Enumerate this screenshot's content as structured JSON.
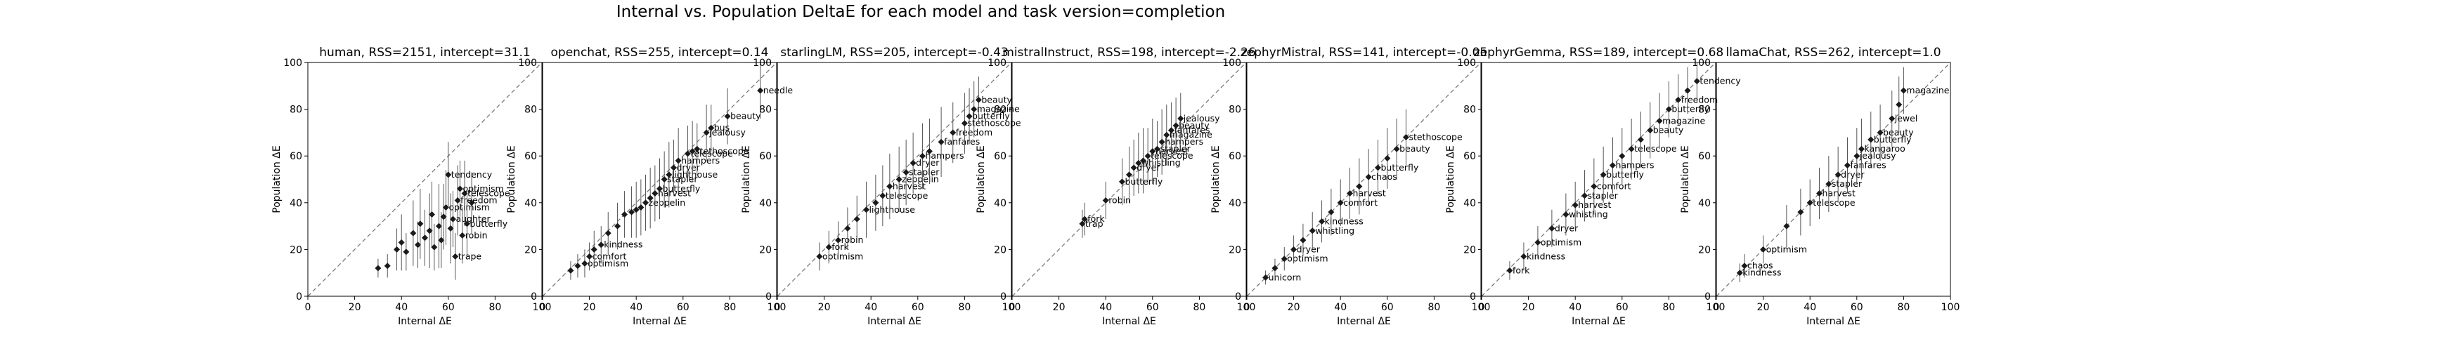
{
  "title": "Internal vs. Population DeltaE for each model and task version=completion",
  "colors": {
    "marker": "#1a1a1a",
    "errorbar": "#555555",
    "diagonal": "#7a7a7a"
  },
  "chart_data": [
    {
      "type": "scatter",
      "title": "human, RSS=2151, intercept=31.1",
      "xlabel": "Internal ΔE",
      "ylabel": "Population ΔE",
      "xlim": [
        0,
        100
      ],
      "ylim": [
        0,
        100
      ],
      "xticks": [
        "0",
        "20",
        "40",
        "60",
        "80",
        "100"
      ],
      "yticks": [
        "0",
        "20",
        "40",
        "60",
        "80",
        "100"
      ],
      "reference_line": "y = x, dashed",
      "points": [
        {
          "x": 30,
          "y": 12,
          "err": 4,
          "label": ""
        },
        {
          "x": 34,
          "y": 13,
          "err": 5,
          "label": ""
        },
        {
          "x": 38,
          "y": 20,
          "err": 9,
          "label": ""
        },
        {
          "x": 40,
          "y": 23,
          "err": 12,
          "label": ""
        },
        {
          "x": 42,
          "y": 19,
          "err": 8,
          "label": ""
        },
        {
          "x": 45,
          "y": 27,
          "err": 14,
          "label": ""
        },
        {
          "x": 47,
          "y": 22,
          "err": 10,
          "label": ""
        },
        {
          "x": 48,
          "y": 31,
          "err": 15,
          "label": ""
        },
        {
          "x": 50,
          "y": 25,
          "err": 12,
          "label": ""
        },
        {
          "x": 52,
          "y": 28,
          "err": 16,
          "label": ""
        },
        {
          "x": 53,
          "y": 35,
          "err": 14,
          "label": ""
        },
        {
          "x": 54,
          "y": 21,
          "err": 10,
          "label": ""
        },
        {
          "x": 56,
          "y": 30,
          "err": 18,
          "label": ""
        },
        {
          "x": 57,
          "y": 24,
          "err": 12,
          "label": ""
        },
        {
          "x": 58,
          "y": 34,
          "err": 14,
          "label": ""
        },
        {
          "x": 59,
          "y": 38,
          "err": 16,
          "label": "optimism"
        },
        {
          "x": 60,
          "y": 52,
          "err": 14,
          "label": "tendency"
        },
        {
          "x": 61,
          "y": 29,
          "err": 15,
          "label": ""
        },
        {
          "x": 62,
          "y": 33,
          "err": 12,
          "label": "aughter"
        },
        {
          "x": 63,
          "y": 17,
          "err": 10,
          "label": "trape"
        },
        {
          "x": 64,
          "y": 41,
          "err": 15,
          "label": "freedom"
        },
        {
          "x": 65,
          "y": 46,
          "err": 12,
          "label": "optimism"
        },
        {
          "x": 66,
          "y": 26,
          "err": 12,
          "label": "robin"
        },
        {
          "x": 67,
          "y": 44,
          "err": 14,
          "label": "telescope"
        },
        {
          "x": 68,
          "y": 31,
          "err": 14,
          "label": "butterfly"
        },
        {
          "x": 70,
          "y": 40,
          "err": 13,
          "label": ""
        }
      ]
    },
    {
      "type": "scatter",
      "title": "openchat, RSS=255, intercept=0.14",
      "xlabel": "Internal ΔE",
      "ylabel": "Population ΔE",
      "xlim": [
        0,
        100
      ],
      "ylim": [
        0,
        100
      ],
      "xticks": [
        "0",
        "20",
        "40",
        "60",
        "80",
        "100"
      ],
      "yticks": [
        "0",
        "20",
        "40",
        "60",
        "80",
        "100"
      ],
      "reference_line": "y = x, dashed",
      "points": [
        {
          "x": 12,
          "y": 11,
          "err": 4,
          "label": ""
        },
        {
          "x": 15,
          "y": 13,
          "err": 5,
          "label": ""
        },
        {
          "x": 18,
          "y": 14,
          "err": 6,
          "label": "optimism"
        },
        {
          "x": 20,
          "y": 17,
          "err": 6,
          "label": "comfort"
        },
        {
          "x": 22,
          "y": 20,
          "err": 8,
          "label": ""
        },
        {
          "x": 25,
          "y": 22,
          "err": 8,
          "label": "kindness"
        },
        {
          "x": 28,
          "y": 27,
          "err": 9,
          "label": ""
        },
        {
          "x": 32,
          "y": 30,
          "err": 10,
          "label": ""
        },
        {
          "x": 35,
          "y": 35,
          "err": 10,
          "label": ""
        },
        {
          "x": 38,
          "y": 36,
          "err": 11,
          "label": ""
        },
        {
          "x": 40,
          "y": 37,
          "err": 12,
          "label": ""
        },
        {
          "x": 42,
          "y": 38,
          "err": 12,
          "label": ""
        },
        {
          "x": 44,
          "y": 40,
          "err": 12,
          "label": "zeppelin"
        },
        {
          "x": 46,
          "y": 42,
          "err": 13,
          "label": ""
        },
        {
          "x": 48,
          "y": 44,
          "err": 12,
          "label": "harvest"
        },
        {
          "x": 50,
          "y": 46,
          "err": 13,
          "label": "butterfly"
        },
        {
          "x": 52,
          "y": 50,
          "err": 12,
          "label": "stapler"
        },
        {
          "x": 54,
          "y": 52,
          "err": 14,
          "label": "lighthouse"
        },
        {
          "x": 56,
          "y": 55,
          "err": 12,
          "label": "dryer"
        },
        {
          "x": 58,
          "y": 58,
          "err": 14,
          "label": "hampers"
        },
        {
          "x": 62,
          "y": 61,
          "err": 12,
          "label": "telescope"
        },
        {
          "x": 64,
          "y": 62,
          "err": 13,
          "label": "stethoscope"
        },
        {
          "x": 66,
          "y": 63,
          "err": 11,
          "label": ""
        },
        {
          "x": 70,
          "y": 70,
          "err": 12,
          "label": "jealousy"
        },
        {
          "x": 72,
          "y": 72,
          "err": 10,
          "label": "bus"
        },
        {
          "x": 79,
          "y": 77,
          "err": 12,
          "label": "beauty"
        },
        {
          "x": 93,
          "y": 88,
          "err": 12,
          "label": "needle"
        }
      ]
    },
    {
      "type": "scatter",
      "title": "starlingLM, RSS=205, intercept=-0.43",
      "xlabel": "Internal ΔE",
      "ylabel": "Population ΔE",
      "xlim": [
        0,
        100
      ],
      "ylim": [
        0,
        100
      ],
      "xticks": [
        "0",
        "20",
        "40",
        "60",
        "80",
        "100"
      ],
      "yticks": [
        "0",
        "20",
        "40",
        "60",
        "80",
        "100"
      ],
      "reference_line": "y = x, dashed",
      "points": [
        {
          "x": 18,
          "y": 17,
          "err": 6,
          "label": "optimism"
        },
        {
          "x": 22,
          "y": 21,
          "err": 7,
          "label": "fork"
        },
        {
          "x": 26,
          "y": 24,
          "err": 8,
          "label": "robin"
        },
        {
          "x": 30,
          "y": 29,
          "err": 9,
          "label": ""
        },
        {
          "x": 34,
          "y": 33,
          "err": 10,
          "label": ""
        },
        {
          "x": 38,
          "y": 37,
          "err": 12,
          "label": "lighthouse"
        },
        {
          "x": 42,
          "y": 40,
          "err": 12,
          "label": ""
        },
        {
          "x": 45,
          "y": 43,
          "err": 13,
          "label": "telescope"
        },
        {
          "x": 48,
          "y": 47,
          "err": 14,
          "label": "harvest"
        },
        {
          "x": 52,
          "y": 50,
          "err": 14,
          "label": "zeppelin"
        },
        {
          "x": 55,
          "y": 53,
          "err": 14,
          "label": "stapler"
        },
        {
          "x": 58,
          "y": 57,
          "err": 13,
          "label": "dryer"
        },
        {
          "x": 62,
          "y": 60,
          "err": 14,
          "label": "hampers"
        },
        {
          "x": 65,
          "y": 62,
          "err": 14,
          "label": ""
        },
        {
          "x": 70,
          "y": 66,
          "err": 15,
          "label": "fanfares"
        },
        {
          "x": 75,
          "y": 70,
          "err": 13,
          "label": "freedom"
        },
        {
          "x": 80,
          "y": 74,
          "err": 13,
          "label": "stethoscope"
        },
        {
          "x": 82,
          "y": 77,
          "err": 12,
          "label": "butterfly"
        },
        {
          "x": 84,
          "y": 80,
          "err": 12,
          "label": "magazine"
        },
        {
          "x": 86,
          "y": 84,
          "err": 10,
          "label": "beauty"
        }
      ]
    },
    {
      "type": "scatter",
      "title": "mistralInstruct, RSS=198, intercept=-2.26",
      "xlabel": "Internal ΔE",
      "ylabel": "Population ΔE",
      "xlim": [
        0,
        100
      ],
      "ylim": [
        0,
        100
      ],
      "xticks": [
        "0",
        "20",
        "40",
        "60",
        "80",
        "100"
      ],
      "yticks": [
        "0",
        "20",
        "40",
        "60",
        "80",
        "100"
      ],
      "reference_line": "y = x, dashed",
      "points": [
        {
          "x": 30,
          "y": 31,
          "err": 6,
          "label": "trap"
        },
        {
          "x": 31,
          "y": 33,
          "err": 7,
          "label": "fork"
        },
        {
          "x": 40,
          "y": 41,
          "err": 8,
          "label": "robin"
        },
        {
          "x": 47,
          "y": 49,
          "err": 10,
          "label": "butterfly"
        },
        {
          "x": 50,
          "y": 52,
          "err": 12,
          "label": ""
        },
        {
          "x": 52,
          "y": 55,
          "err": 12,
          "label": "dryer"
        },
        {
          "x": 54,
          "y": 57,
          "err": 13,
          "label": "whistling"
        },
        {
          "x": 56,
          "y": 58,
          "err": 14,
          "label": ""
        },
        {
          "x": 58,
          "y": 60,
          "err": 12,
          "label": "telescope"
        },
        {
          "x": 60,
          "y": 62,
          "err": 14,
          "label": "harvest"
        },
        {
          "x": 62,
          "y": 63,
          "err": 12,
          "label": "stapler"
        },
        {
          "x": 64,
          "y": 66,
          "err": 14,
          "label": "hampers"
        },
        {
          "x": 66,
          "y": 69,
          "err": 13,
          "label": "magazine"
        },
        {
          "x": 68,
          "y": 71,
          "err": 12,
          "label": "fanfares"
        },
        {
          "x": 70,
          "y": 73,
          "err": 12,
          "label": "beauty"
        },
        {
          "x": 72,
          "y": 76,
          "err": 11,
          "label": "jealousy"
        }
      ]
    },
    {
      "type": "scatter",
      "title": "zephyrMistral, RSS=141, intercept=-0.05",
      "xlabel": "Internal ΔE",
      "ylabel": "Population ΔE",
      "xlim": [
        0,
        100
      ],
      "ylim": [
        0,
        100
      ],
      "xticks": [
        "0",
        "20",
        "40",
        "60",
        "80",
        "100"
      ],
      "yticks": [
        "0",
        "20",
        "40",
        "60",
        "80",
        "100"
      ],
      "reference_line": "y = x, dashed",
      "points": [
        {
          "x": 8,
          "y": 8,
          "err": 3,
          "label": "unicorn"
        },
        {
          "x": 12,
          "y": 12,
          "err": 4,
          "label": ""
        },
        {
          "x": 16,
          "y": 16,
          "err": 5,
          "label": "optimism"
        },
        {
          "x": 20,
          "y": 20,
          "err": 6,
          "label": "dryer"
        },
        {
          "x": 24,
          "y": 24,
          "err": 7,
          "label": ""
        },
        {
          "x": 28,
          "y": 28,
          "err": 8,
          "label": "whistling"
        },
        {
          "x": 32,
          "y": 32,
          "err": 9,
          "label": "kindness"
        },
        {
          "x": 36,
          "y": 36,
          "err": 10,
          "label": ""
        },
        {
          "x": 40,
          "y": 40,
          "err": 10,
          "label": "comfort"
        },
        {
          "x": 44,
          "y": 44,
          "err": 11,
          "label": "harvest"
        },
        {
          "x": 48,
          "y": 47,
          "err": 12,
          "label": ""
        },
        {
          "x": 52,
          "y": 51,
          "err": 12,
          "label": "chaos"
        },
        {
          "x": 56,
          "y": 55,
          "err": 12,
          "label": "butterfly"
        },
        {
          "x": 60,
          "y": 59,
          "err": 13,
          "label": ""
        },
        {
          "x": 64,
          "y": 63,
          "err": 13,
          "label": "beauty"
        },
        {
          "x": 68,
          "y": 68,
          "err": 12,
          "label": "stethoscope"
        }
      ]
    },
    {
      "type": "scatter",
      "title": "zephyrGemma, RSS=189, intercept=0.68",
      "xlabel": "Internal ΔE",
      "ylabel": "Population ΔE",
      "xlim": [
        0,
        100
      ],
      "ylim": [
        0,
        100
      ],
      "xticks": [
        "0",
        "20",
        "40",
        "60",
        "80",
        "100"
      ],
      "yticks": [
        "0",
        "20",
        "40",
        "60",
        "80",
        "100"
      ],
      "reference_line": "y = x, dashed",
      "points": [
        {
          "x": 12,
          "y": 11,
          "err": 4,
          "label": "fork"
        },
        {
          "x": 18,
          "y": 17,
          "err": 6,
          "label": "kindness"
        },
        {
          "x": 24,
          "y": 23,
          "err": 7,
          "label": "optimism"
        },
        {
          "x": 30,
          "y": 29,
          "err": 8,
          "label": "dryer"
        },
        {
          "x": 36,
          "y": 35,
          "err": 9,
          "label": "whistling"
        },
        {
          "x": 40,
          "y": 39,
          "err": 10,
          "label": "harvest"
        },
        {
          "x": 44,
          "y": 43,
          "err": 11,
          "label": "stapler"
        },
        {
          "x": 48,
          "y": 47,
          "err": 12,
          "label": "comfort"
        },
        {
          "x": 52,
          "y": 52,
          "err": 12,
          "label": "butterfly"
        },
        {
          "x": 56,
          "y": 56,
          "err": 12,
          "label": "hampers"
        },
        {
          "x": 60,
          "y": 60,
          "err": 12,
          "label": ""
        },
        {
          "x": 64,
          "y": 63,
          "err": 13,
          "label": "telescope"
        },
        {
          "x": 68,
          "y": 67,
          "err": 12,
          "label": ""
        },
        {
          "x": 72,
          "y": 71,
          "err": 12,
          "label": "beauty"
        },
        {
          "x": 76,
          "y": 75,
          "err": 12,
          "label": "magazine"
        },
        {
          "x": 80,
          "y": 80,
          "err": 12,
          "label": "butterfly"
        },
        {
          "x": 84,
          "y": 84,
          "err": 11,
          "label": "freedom"
        },
        {
          "x": 88,
          "y": 88,
          "err": 10,
          "label": ""
        },
        {
          "x": 92,
          "y": 92,
          "err": 9,
          "label": "tendency"
        }
      ]
    },
    {
      "type": "scatter",
      "title": "llamaChat, RSS=262, intercept=1.0",
      "xlabel": "Internal ΔE",
      "ylabel": "Population ΔE",
      "xlim": [
        0,
        100
      ],
      "ylim": [
        0,
        100
      ],
      "xticks": [
        "0",
        "20",
        "40",
        "60",
        "80",
        "100"
      ],
      "yticks": [
        "0",
        "20",
        "40",
        "60",
        "80",
        "100"
      ],
      "reference_line": "y = x, dashed",
      "points": [
        {
          "x": 10,
          "y": 10,
          "err": 4,
          "label": "kindness"
        },
        {
          "x": 12,
          "y": 13,
          "err": 5,
          "label": "chaos"
        },
        {
          "x": 20,
          "y": 20,
          "err": 6,
          "label": "optimism"
        },
        {
          "x": 30,
          "y": 30,
          "err": 9,
          "label": ""
        },
        {
          "x": 36,
          "y": 36,
          "err": 10,
          "label": ""
        },
        {
          "x": 40,
          "y": 40,
          "err": 10,
          "label": "telescope"
        },
        {
          "x": 44,
          "y": 44,
          "err": 11,
          "label": "harvest"
        },
        {
          "x": 48,
          "y": 48,
          "err": 12,
          "label": "stapler"
        },
        {
          "x": 52,
          "y": 52,
          "err": 12,
          "label": "dryer"
        },
        {
          "x": 56,
          "y": 56,
          "err": 12,
          "label": "fanfares"
        },
        {
          "x": 60,
          "y": 60,
          "err": 12,
          "label": "jealousy"
        },
        {
          "x": 62,
          "y": 63,
          "err": 13,
          "label": "kangaroo"
        },
        {
          "x": 66,
          "y": 67,
          "err": 12,
          "label": "butterfly"
        },
        {
          "x": 70,
          "y": 70,
          "err": 12,
          "label": "beauty"
        },
        {
          "x": 75,
          "y": 76,
          "err": 12,
          "label": "jewel"
        },
        {
          "x": 78,
          "y": 82,
          "err": 12,
          "label": ""
        },
        {
          "x": 80,
          "y": 88,
          "err": 10,
          "label": "magazine"
        }
      ]
    }
  ]
}
